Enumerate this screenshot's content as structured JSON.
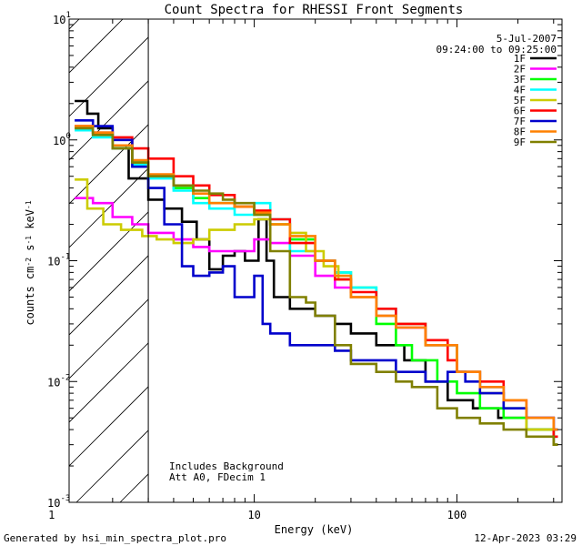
{
  "chart_data": {
    "type": "line",
    "step": true,
    "title": "Count Spectra for RHESSI Front Segments",
    "xlabel": "Energy (keV)",
    "ylabel_parts": [
      "counts cm",
      "-2",
      " s",
      "-1",
      " keV",
      "-1"
    ],
    "xscale": "log",
    "yscale": "log",
    "xlim": [
      1.22,
      330
    ],
    "ylim": [
      0.001,
      10
    ],
    "x_ticks": [
      {
        "value": 1,
        "label": "1"
      },
      {
        "value": 10,
        "label": "10"
      },
      {
        "value": 100,
        "label": "100"
      }
    ],
    "y_ticks": [
      {
        "value": 0.001,
        "base": "10",
        "exp": "-3"
      },
      {
        "value": 0.01,
        "base": "10",
        "exp": "-2"
      },
      {
        "value": 0.1,
        "base": "10",
        "exp": "-1"
      },
      {
        "value": 1,
        "base": "10",
        "exp": "0"
      },
      {
        "value": 10,
        "base": "10",
        "exp": "1"
      }
    ],
    "legend_date": "5-Jul-2007",
    "legend_time": "09:24:00 to 09:25:00",
    "legend_position": "top-right",
    "annotation_lines": [
      "Includes Background",
      "Att A0, FDecim 1"
    ],
    "excluded_region_max_kev": 3,
    "series": [
      {
        "name": "1F",
        "color": "#000000",
        "points": [
          [
            1.3,
            2.1
          ],
          [
            1.5,
            1.65
          ],
          [
            1.7,
            1.25
          ],
          [
            2.0,
            0.85
          ],
          [
            2.4,
            0.48
          ],
          [
            3.0,
            0.32
          ],
          [
            3.6,
            0.27
          ],
          [
            4.4,
            0.21
          ],
          [
            5.2,
            0.15
          ],
          [
            6.0,
            0.085
          ],
          [
            7.0,
            0.11
          ],
          [
            8.0,
            0.12
          ],
          [
            9.0,
            0.1
          ],
          [
            10.5,
            0.22
          ],
          [
            11.5,
            0.1
          ],
          [
            12.5,
            0.05
          ],
          [
            15,
            0.04
          ],
          [
            20,
            0.035
          ],
          [
            25,
            0.03
          ],
          [
            30,
            0.025
          ],
          [
            40,
            0.02
          ],
          [
            55,
            0.015
          ],
          [
            70,
            0.01
          ],
          [
            90,
            0.007
          ],
          [
            120,
            0.006
          ],
          [
            160,
            0.005
          ],
          [
            220,
            0.004
          ],
          [
            300,
            0.003
          ]
        ]
      },
      {
        "name": "2F",
        "color": "#ff00ff",
        "points": [
          [
            1.3,
            0.33
          ],
          [
            1.6,
            0.3
          ],
          [
            2.0,
            0.23
          ],
          [
            2.5,
            0.2
          ],
          [
            3.0,
            0.17
          ],
          [
            4.0,
            0.15
          ],
          [
            5.0,
            0.13
          ],
          [
            6.0,
            0.12
          ],
          [
            8.0,
            0.12
          ],
          [
            10,
            0.15
          ],
          [
            12,
            0.14
          ],
          [
            15,
            0.11
          ],
          [
            20,
            0.075
          ],
          [
            25,
            0.06
          ],
          [
            30,
            0.05
          ],
          [
            40,
            0.035
          ],
          [
            50,
            0.028
          ],
          [
            70,
            0.02
          ],
          [
            100,
            0.012
          ],
          [
            130,
            0.009
          ],
          [
            170,
            0.007
          ],
          [
            220,
            0.005
          ],
          [
            300,
            0.003
          ]
        ]
      },
      {
        "name": "3F",
        "color": "#00ff00",
        "points": [
          [
            1.3,
            1.25
          ],
          [
            1.6,
            1.1
          ],
          [
            2.0,
            0.9
          ],
          [
            2.5,
            0.65
          ],
          [
            3.0,
            0.5
          ],
          [
            4.0,
            0.4
          ],
          [
            5.0,
            0.33
          ],
          [
            6.0,
            0.3
          ],
          [
            8.0,
            0.28
          ],
          [
            10,
            0.24
          ],
          [
            12,
            0.2
          ],
          [
            15,
            0.15
          ],
          [
            20,
            0.1
          ],
          [
            25,
            0.08
          ],
          [
            30,
            0.06
          ],
          [
            40,
            0.03
          ],
          [
            50,
            0.02
          ],
          [
            60,
            0.015
          ],
          [
            80,
            0.01
          ],
          [
            100,
            0.008
          ],
          [
            130,
            0.006
          ],
          [
            170,
            0.005
          ],
          [
            220,
            0.004
          ],
          [
            300,
            0.003
          ]
        ]
      },
      {
        "name": "4F",
        "color": "#00ffff",
        "points": [
          [
            1.3,
            1.2
          ],
          [
            1.6,
            1.05
          ],
          [
            2.0,
            0.85
          ],
          [
            2.5,
            0.62
          ],
          [
            3.0,
            0.48
          ],
          [
            4.0,
            0.38
          ],
          [
            5.0,
            0.3
          ],
          [
            6.0,
            0.27
          ],
          [
            8.0,
            0.24
          ],
          [
            10,
            0.3
          ],
          [
            12,
            0.22
          ],
          [
            15,
            0.12
          ],
          [
            20,
            0.1
          ],
          [
            25,
            0.08
          ],
          [
            30,
            0.06
          ],
          [
            40,
            0.04
          ],
          [
            50,
            0.03
          ],
          [
            70,
            0.02
          ],
          [
            100,
            0.012
          ],
          [
            130,
            0.009
          ],
          [
            170,
            0.006
          ],
          [
            220,
            0.005
          ],
          [
            300,
            0.0035
          ]
        ]
      },
      {
        "name": "5F",
        "color": "#cccc00",
        "points": [
          [
            1.3,
            0.47
          ],
          [
            1.5,
            0.27
          ],
          [
            1.8,
            0.2
          ],
          [
            2.2,
            0.18
          ],
          [
            2.8,
            0.16
          ],
          [
            3.3,
            0.15
          ],
          [
            4.0,
            0.14
          ],
          [
            5.0,
            0.15
          ],
          [
            6.0,
            0.18
          ],
          [
            8.0,
            0.2
          ],
          [
            10,
            0.22
          ],
          [
            12,
            0.2
          ],
          [
            15,
            0.17
          ],
          [
            18,
            0.12
          ],
          [
            22,
            0.09
          ],
          [
            26,
            0.07
          ],
          [
            30,
            0.05
          ],
          [
            40,
            0.035
          ],
          [
            50,
            0.03
          ],
          [
            70,
            0.02
          ],
          [
            100,
            0.012
          ],
          [
            130,
            0.008
          ],
          [
            170,
            0.006
          ],
          [
            220,
            0.004
          ],
          [
            300,
            0.003
          ]
        ]
      },
      {
        "name": "6F",
        "color": "#ff0000",
        "points": [
          [
            1.3,
            1.3
          ],
          [
            1.6,
            1.15
          ],
          [
            2.0,
            1.05
          ],
          [
            2.5,
            0.85
          ],
          [
            3.0,
            0.7
          ],
          [
            4.0,
            0.5
          ],
          [
            5.0,
            0.42
          ],
          [
            6.0,
            0.35
          ],
          [
            8.0,
            0.28
          ],
          [
            10,
            0.26
          ],
          [
            12,
            0.22
          ],
          [
            15,
            0.14
          ],
          [
            20,
            0.1
          ],
          [
            25,
            0.07
          ],
          [
            30,
            0.055
          ],
          [
            40,
            0.04
          ],
          [
            50,
            0.03
          ],
          [
            70,
            0.022
          ],
          [
            90,
            0.015
          ],
          [
            100,
            0.012
          ],
          [
            130,
            0.01
          ],
          [
            170,
            0.007
          ],
          [
            220,
            0.005
          ],
          [
            300,
            0.0035
          ]
        ]
      },
      {
        "name": "7F",
        "color": "#0000cc",
        "points": [
          [
            1.3,
            1.45
          ],
          [
            1.6,
            1.3
          ],
          [
            2.0,
            1.0
          ],
          [
            2.5,
            0.6
          ],
          [
            3.0,
            0.4
          ],
          [
            3.6,
            0.2
          ],
          [
            4.4,
            0.09
          ],
          [
            5.0,
            0.075
          ],
          [
            6.0,
            0.08
          ],
          [
            7.0,
            0.09
          ],
          [
            8.0,
            0.05
          ],
          [
            9.0,
            0.05
          ],
          [
            10,
            0.075
          ],
          [
            11,
            0.03
          ],
          [
            12,
            0.025
          ],
          [
            15,
            0.02
          ],
          [
            20,
            0.02
          ],
          [
            25,
            0.018
          ],
          [
            30,
            0.015
          ],
          [
            40,
            0.015
          ],
          [
            50,
            0.012
          ],
          [
            70,
            0.01
          ],
          [
            90,
            0.012
          ],
          [
            110,
            0.01
          ],
          [
            130,
            0.008
          ],
          [
            170,
            0.006
          ],
          [
            220,
            0.005
          ],
          [
            300,
            0.004
          ]
        ]
      },
      {
        "name": "8F",
        "color": "#ff8000",
        "points": [
          [
            1.3,
            1.3
          ],
          [
            1.6,
            1.15
          ],
          [
            2.0,
            0.9
          ],
          [
            2.5,
            0.68
          ],
          [
            3.0,
            0.52
          ],
          [
            4.0,
            0.42
          ],
          [
            5.0,
            0.36
          ],
          [
            6.0,
            0.3
          ],
          [
            8.0,
            0.28
          ],
          [
            10,
            0.25
          ],
          [
            12,
            0.2
          ],
          [
            15,
            0.16
          ],
          [
            20,
            0.1
          ],
          [
            25,
            0.075
          ],
          [
            30,
            0.05
          ],
          [
            40,
            0.035
          ],
          [
            50,
            0.028
          ],
          [
            70,
            0.02
          ],
          [
            100,
            0.012
          ],
          [
            130,
            0.009
          ],
          [
            170,
            0.007
          ],
          [
            220,
            0.005
          ],
          [
            300,
            0.004
          ]
        ]
      },
      {
        "name": "9F",
        "color": "#808000",
        "points": [
          [
            1.3,
            1.25
          ],
          [
            1.6,
            1.1
          ],
          [
            2.0,
            0.85
          ],
          [
            2.5,
            0.65
          ],
          [
            3.0,
            0.5
          ],
          [
            4.0,
            0.42
          ],
          [
            5.0,
            0.38
          ],
          [
            6.0,
            0.36
          ],
          [
            7.0,
            0.32
          ],
          [
            8.0,
            0.3
          ],
          [
            10,
            0.24
          ],
          [
            12,
            0.12
          ],
          [
            15,
            0.05
          ],
          [
            18,
            0.045
          ],
          [
            20,
            0.035
          ],
          [
            25,
            0.02
          ],
          [
            30,
            0.014
          ],
          [
            40,
            0.012
          ],
          [
            50,
            0.01
          ],
          [
            60,
            0.009
          ],
          [
            80,
            0.006
          ],
          [
            100,
            0.005
          ],
          [
            130,
            0.0045
          ],
          [
            170,
            0.004
          ],
          [
            220,
            0.0035
          ],
          [
            300,
            0.003
          ]
        ]
      }
    ]
  },
  "footer": {
    "generated_by": "Generated by hsi_min_spectra_plot.pro",
    "timestamp": "12-Apr-2023 03:29"
  }
}
